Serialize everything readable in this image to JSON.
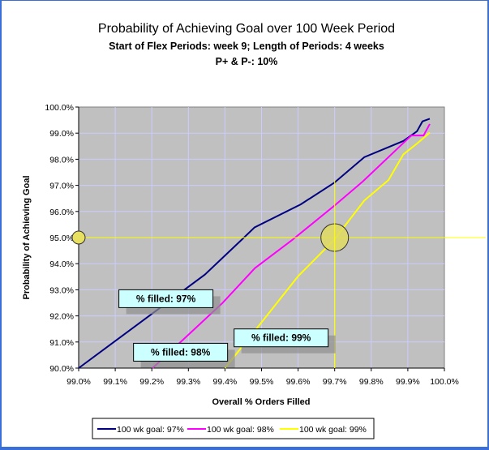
{
  "chart_data": {
    "type": "line",
    "title": "Probability of Achieving Goal over 100 Week Period",
    "subtitle": "Start of Flex Periods: week 9; Length of Periods: 4 weeks",
    "subtitle2": "P+ & P-: 10%",
    "xlabel": "Overall % Orders Filled",
    "ylabel": "Probability of Achieving Goal",
    "xlim": [
      99.0,
      100.0
    ],
    "ylim": [
      90.0,
      100.0
    ],
    "xticks": [
      "99.0%",
      "99.1%",
      "99.2%",
      "99.3%",
      "99.4%",
      "99.5%",
      "99.6%",
      "99.7%",
      "99.8%",
      "99.9%",
      "100.0%"
    ],
    "yticks": [
      "90.0%",
      "91.0%",
      "92.0%",
      "93.0%",
      "94.0%",
      "95.0%",
      "96.0%",
      "97.0%",
      "98.0%",
      "99.0%",
      "100.0%"
    ],
    "grid": true,
    "plot_background": "#c0c0c0",
    "gridline_color": "#ccccff",
    "legend_position": "bottom",
    "series": [
      {
        "name": "100 wk goal: 97%",
        "color": "#000080",
        "x": [
          99.0,
          99.345,
          99.452,
          99.481,
          99.607,
          99.699,
          99.781,
          99.888,
          99.925,
          99.94,
          99.96
        ],
        "y": [
          90.0,
          93.58,
          95.0,
          95.39,
          96.27,
          97.1,
          98.08,
          98.7,
          99.07,
          99.45,
          99.55
        ]
      },
      {
        "name": "100 wk goal: 98%",
        "color": "#ff00ff",
        "x": [
          99.202,
          99.393,
          99.482,
          99.585,
          99.699,
          99.777,
          99.902,
          99.91,
          99.943,
          99.96
        ],
        "y": [
          90.0,
          92.49,
          93.83,
          94.92,
          96.22,
          97.15,
          98.81,
          98.91,
          98.91,
          99.35
        ]
      },
      {
        "name": "100 wk goal: 99%",
        "color": "#ffff00",
        "x": [
          99.4,
          99.518,
          99.6,
          99.699,
          99.781,
          99.847,
          99.888,
          99.925,
          99.96
        ],
        "y": [
          90.0,
          92.07,
          93.52,
          94.92,
          96.42,
          97.2,
          98.19,
          98.6,
          99.02
        ]
      }
    ],
    "reference_lines": {
      "x": 99.7,
      "y": 95.0,
      "color": "#ffff00"
    },
    "markers": [
      {
        "x": 99.0,
        "y": 95.0
      },
      {
        "x": 99.7,
        "y": 95.0
      }
    ],
    "annotations": [
      {
        "text": "% filled: 97%",
        "x": 99.11,
        "y": 93.0
      },
      {
        "text": "% filled: 98%",
        "x": 99.15,
        "y": 90.95
      },
      {
        "text": "% filled: 99%",
        "x": 99.425,
        "y": 91.5
      }
    ]
  }
}
